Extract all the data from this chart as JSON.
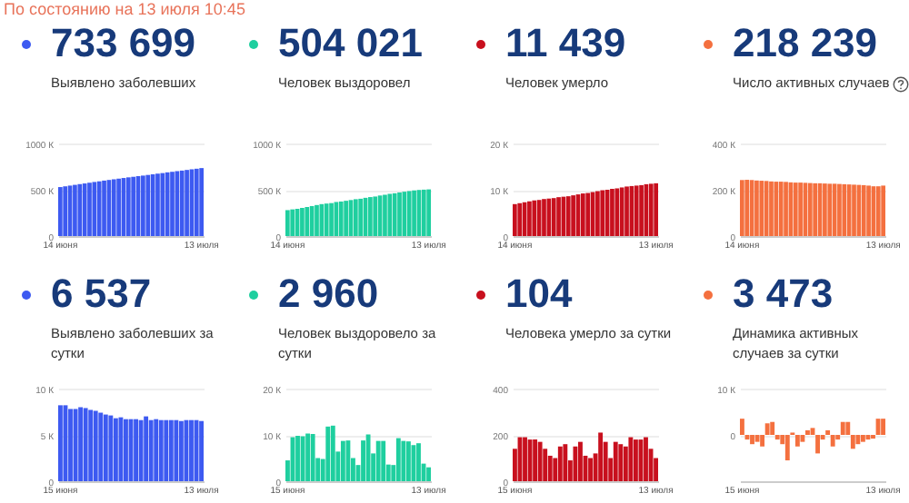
{
  "chart_data": [
    {
      "type": "bar",
      "title": "733 699",
      "subtitle": "Выявлено заболевших",
      "annotations": [
        "По состоянию на 13 июля 10:45"
      ],
      "color": "#3d5af1",
      "grid": "y",
      "categories": [
        "14 июня",
        null,
        null,
        null,
        null,
        null,
        null,
        null,
        null,
        null,
        null,
        null,
        null,
        null,
        null,
        null,
        null,
        null,
        null,
        null,
        null,
        null,
        null,
        null,
        null,
        null,
        null,
        null,
        null,
        "13 июля"
      ],
      "values": [
        529,
        537,
        545,
        553,
        561,
        568,
        576,
        584,
        591,
        599,
        606,
        613,
        620,
        627,
        634,
        640,
        647,
        653,
        660,
        667,
        674,
        680,
        688,
        694,
        701,
        707,
        714,
        721,
        727,
        734
      ],
      "ylim": [
        0,
        1000
      ],
      "yticks": [
        0,
        {
          "value": 500,
          "label": "500 К"
        },
        {
          "value": 1000,
          "label": "1000 К"
        }
      ]
    },
    {
      "type": "bar",
      "title": "504 021",
      "subtitle": "Человек выздоровел",
      "color": "#1fcf9f",
      "grid": "y",
      "categories": [
        "14 июня",
        null,
        null,
        null,
        null,
        null,
        null,
        null,
        null,
        null,
        null,
        null,
        null,
        null,
        null,
        null,
        null,
        null,
        null,
        null,
        null,
        null,
        null,
        null,
        null,
        null,
        null,
        null,
        null,
        "13 июля"
      ],
      "values": [
        280,
        288,
        294,
        304,
        314,
        324,
        335,
        345,
        351,
        356,
        368,
        373,
        381,
        389,
        398,
        403,
        413,
        421,
        427,
        438,
        446,
        456,
        462,
        471,
        479,
        486,
        493,
        498,
        501,
        504
      ],
      "ylim": [
        0,
        1000
      ],
      "yticks": [
        0,
        {
          "value": 500,
          "label": "500 К"
        },
        {
          "value": 1000,
          "label": "1000 К"
        }
      ]
    },
    {
      "type": "bar",
      "title": "11 439",
      "subtitle": "Человек умерло",
      "color": "#c8101e",
      "grid": "y",
      "categories": [
        "14 июня",
        null,
        null,
        null,
        null,
        null,
        null,
        null,
        null,
        null,
        null,
        null,
        null,
        null,
        null,
        null,
        null,
        null,
        null,
        null,
        null,
        null,
        null,
        null,
        null,
        null,
        null,
        null,
        null,
        "13 июля"
      ],
      "values": [
        6.9,
        7.1,
        7.3,
        7.5,
        7.7,
        7.8,
        8.0,
        8.1,
        8.2,
        8.4,
        8.5,
        8.6,
        8.8,
        9.0,
        9.2,
        9.3,
        9.5,
        9.7,
        9.9,
        10.0,
        10.2,
        10.3,
        10.5,
        10.7,
        10.8,
        10.9,
        11.0,
        11.2,
        11.3,
        11.4
      ],
      "ylim": [
        0,
        20
      ],
      "yticks": [
        0,
        {
          "value": 10,
          "label": "10 К"
        },
        {
          "value": 20,
          "label": "20 К"
        }
      ]
    },
    {
      "type": "bar",
      "title": "218 239",
      "subtitle": "Число активных случаев",
      "color": "#f4703f",
      "grid": "y",
      "categories": [
        "14 июня",
        null,
        null,
        null,
        null,
        null,
        null,
        null,
        null,
        null,
        null,
        null,
        null,
        null,
        null,
        null,
        null,
        null,
        null,
        null,
        null,
        null,
        null,
        null,
        null,
        null,
        null,
        null,
        null,
        "13 июля"
      ],
      "values": [
        242,
        243,
        242,
        240,
        239,
        238,
        236,
        235,
        235,
        234,
        232,
        231,
        231,
        230,
        229,
        228,
        228,
        227,
        226,
        226,
        225,
        224,
        223,
        222,
        221,
        220,
        218,
        215,
        215,
        218
      ],
      "ylim": [
        0,
        400
      ],
      "yticks": [
        0,
        {
          "value": 200,
          "label": "200 К"
        },
        {
          "value": 400,
          "label": "400 К"
        }
      ]
    },
    {
      "type": "bar",
      "title": "6 537",
      "subtitle": "Выявлено заболевших за сутки",
      "color": "#3d5af1",
      "grid": "y",
      "categories": [
        "15 июня",
        null,
        null,
        null,
        null,
        null,
        null,
        null,
        null,
        null,
        null,
        null,
        null,
        null,
        null,
        null,
        null,
        null,
        null,
        null,
        null,
        null,
        null,
        null,
        null,
        null,
        null,
        null,
        "13 июля"
      ],
      "values": [
        8.2,
        8.2,
        7.8,
        7.8,
        8.0,
        7.9,
        7.7,
        7.6,
        7.4,
        7.2,
        7.1,
        6.8,
        6.9,
        6.7,
        6.7,
        6.7,
        6.6,
        7.0,
        6.6,
        6.7,
        6.6,
        6.6,
        6.6,
        6.6,
        6.5,
        6.6,
        6.6,
        6.6,
        6.5
      ],
      "ylim": [
        0,
        10
      ],
      "yticks": [
        0,
        {
          "value": 5,
          "label": "5 К"
        },
        {
          "value": 10,
          "label": "10 К"
        }
      ]
    },
    {
      "type": "bar",
      "title": "2 960",
      "subtitle": "Человек выздоровело за сутки",
      "color": "#1fcf9f",
      "grid": "y",
      "categories": [
        "15 июня",
        null,
        null,
        null,
        null,
        null,
        null,
        null,
        null,
        null,
        null,
        null,
        null,
        null,
        null,
        null,
        null,
        null,
        null,
        null,
        null,
        null,
        null,
        null,
        null,
        null,
        null,
        null,
        "13 июля"
      ],
      "values": [
        4.5,
        9.5,
        9.8,
        9.7,
        10.3,
        10.2,
        5.0,
        4.8,
        11.8,
        12.0,
        6.4,
        8.7,
        8.8,
        5.0,
        3.5,
        8.8,
        10.1,
        6.0,
        8.7,
        8.7,
        3.6,
        3.5,
        9.3,
        8.7,
        8.6,
        7.8,
        8.2,
        3.8,
        3.0
      ],
      "ylim": [
        0,
        20
      ],
      "yticks": [
        0,
        {
          "value": 10,
          "label": "10 К"
        },
        {
          "value": 20,
          "label": "20 К"
        }
      ]
    },
    {
      "type": "bar",
      "title": "104",
      "subtitle": "Человека умерло за сутки",
      "color": "#c8101e",
      "grid": "y",
      "categories": [
        "15 июня",
        null,
        null,
        null,
        null,
        null,
        null,
        null,
        null,
        null,
        null,
        null,
        null,
        null,
        null,
        null,
        null,
        null,
        null,
        null,
        null,
        null,
        null,
        null,
        null,
        null,
        null,
        null,
        "13 июля"
      ],
      "values": [
        140,
        190,
        190,
        180,
        180,
        170,
        140,
        110,
        100,
        150,
        160,
        90,
        150,
        170,
        110,
        100,
        120,
        210,
        170,
        100,
        170,
        160,
        150,
        190,
        180,
        180,
        190,
        140,
        100
      ],
      "ylim": [
        0,
        400
      ],
      "yticks": [
        0,
        200,
        400
      ]
    },
    {
      "type": "bar",
      "title": "3 473",
      "subtitle": "Динамика активных случаев за сутки",
      "color": "#f4703f",
      "grid": "y",
      "categories": [
        "15 июня",
        null,
        null,
        null,
        null,
        null,
        null,
        null,
        null,
        null,
        null,
        null,
        null,
        null,
        null,
        null,
        null,
        null,
        null,
        null,
        null,
        null,
        null,
        null,
        null,
        null,
        null,
        null,
        "13 июля"
      ],
      "values": [
        3.5,
        -1.0,
        -2.0,
        -1.5,
        -2.5,
        2.5,
        2.8,
        -1.0,
        -2.0,
        -5.5,
        0.5,
        -2.5,
        -1.5,
        1.0,
        1.5,
        -4.0,
        -1.0,
        1.0,
        -2.5,
        -1.0,
        2.8,
        2.8,
        -3.0,
        -2.0,
        -1.5,
        -1.0,
        -0.8,
        3.5,
        3.5
      ],
      "ylim": [
        -10,
        10
      ],
      "yticks": [
        0,
        {
          "value": 10,
          "label": "10 К"
        }
      ]
    }
  ]
}
